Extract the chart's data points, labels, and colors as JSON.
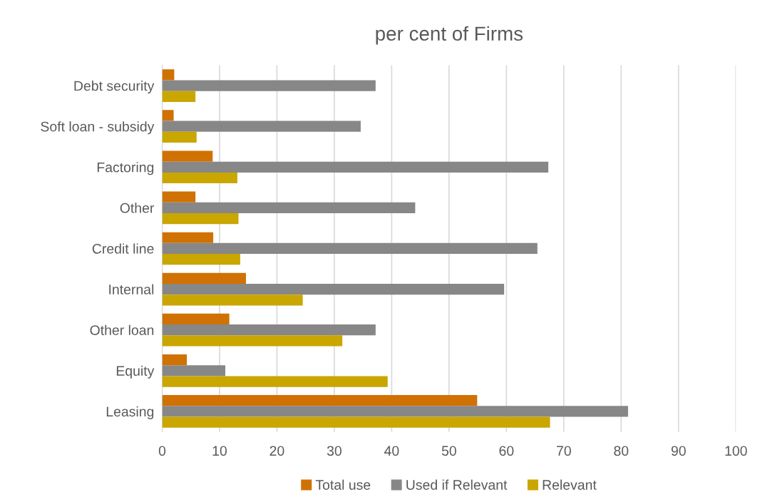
{
  "chart_data": {
    "type": "bar",
    "orientation": "horizontal",
    "title": "per cent of Firms",
    "categories": [
      "Debt security",
      "Soft loan - subsidy",
      "Factoring",
      "Other",
      "Credit line",
      "Internal",
      "Other loan",
      "Equity",
      "Leasing"
    ],
    "series": [
      {
        "name": "Total use",
        "color": "#d07103",
        "values": [
          2.1,
          2.0,
          8.8,
          5.8,
          8.9,
          14.6,
          11.7,
          4.3,
          54.9
        ]
      },
      {
        "name": "Used if Relevant",
        "color": "#878787",
        "values": [
          37.2,
          34.6,
          67.3,
          44.1,
          65.4,
          59.6,
          37.2,
          11.0,
          81.2
        ]
      },
      {
        "name": "Relevant",
        "color": "#c9a600",
        "values": [
          5.8,
          6.0,
          13.1,
          13.3,
          13.6,
          24.5,
          31.4,
          39.3,
          67.6
        ]
      }
    ],
    "xlim": [
      0,
      100
    ],
    "xticks": [
      0,
      10,
      20,
      30,
      40,
      50,
      60,
      70,
      80,
      90,
      100
    ],
    "grid": "x",
    "legend": "bottom"
  }
}
